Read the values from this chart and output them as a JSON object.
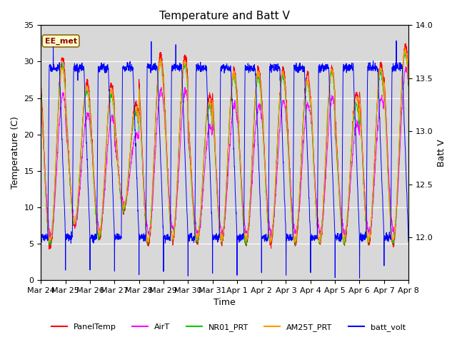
{
  "title": "Temperature and Batt V",
  "xlabel": "Time",
  "ylabel_left": "Temperature (C)",
  "ylabel_right": "Batt V",
  "annotation": "EE_met",
  "ylim_left": [
    0,
    35
  ],
  "ylim_right": [
    11.6,
    14.0
  ],
  "x_tick_labels": [
    "Mar 24",
    "Mar 25",
    "Mar 26",
    "Mar 27",
    "Mar 28",
    "Mar 29",
    "Mar 30",
    "Mar 31",
    "Apr 1",
    "Apr 2",
    "Apr 3",
    "Apr 4",
    "Apr 5",
    "Apr 6",
    "Apr 7",
    "Apr 8"
  ],
  "legend_entries": [
    "PanelTemp",
    "AirT",
    "NR01_PRT",
    "AM25T_PRT",
    "batt_volt"
  ],
  "legend_colors": [
    "#ff0000",
    "#ff00ff",
    "#00cc00",
    "#ff9900",
    "#0000ff"
  ],
  "background_color": "#ffffff",
  "plot_bg_color": "#d8d8d8",
  "grid_color": "#ffffff",
  "title_fontsize": 11,
  "axis_fontsize": 9,
  "tick_fontsize": 8
}
